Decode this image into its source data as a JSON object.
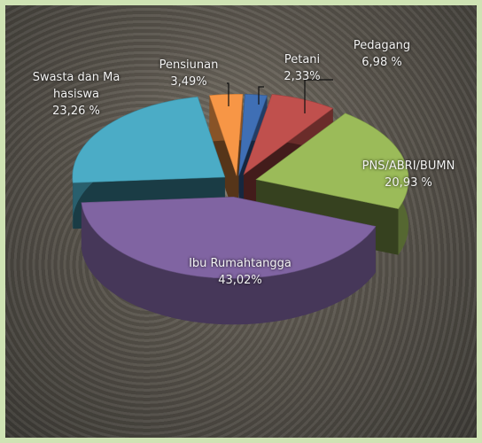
{
  "chart_data": {
    "type": "pie3d",
    "categories": [
      "Petani",
      "Pedagang",
      "PNS/ABRI/BUMN",
      "Ibu Rumahtangga",
      "Swasta dan Mahasiswa",
      "Pensiunan"
    ],
    "values": [
      2.33,
      6.98,
      20.93,
      43.02,
      23.26,
      3.49
    ],
    "value_labels": [
      "2,33%",
      "6,98 %",
      "20,93 %",
      "43,02%",
      "23,26 %",
      "3,49%"
    ],
    "colors": [
      "#3f6fb5",
      "#c0504d",
      "#9bbb59",
      "#8064a2",
      "#4bacc6",
      "#f79646"
    ]
  }
}
